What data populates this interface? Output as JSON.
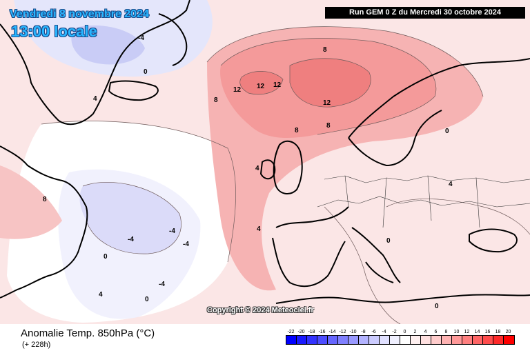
{
  "header": {
    "date_line": "Vendredi 8 novembre 2024",
    "time_line": "13:00 locale",
    "run_info": "Run GEM 0 Z du Mercredi 30 octobre 2024"
  },
  "map": {
    "copyright": "Copyright © 2024 Meteociel.fr",
    "contour_labels": [
      "8",
      "12",
      "12",
      "12",
      "12",
      "8",
      "8",
      "8",
      "4",
      "4",
      "4",
      "0",
      "0",
      "0",
      "-4",
      "-4",
      "-4",
      "-4",
      "-4",
      "8",
      "4",
      "0",
      "0",
      "4",
      "0"
    ]
  },
  "footer": {
    "field_title": "Anomalie Temp. 850hPa (°C)",
    "lead_time": "(+ 228h)"
  },
  "legend": {
    "labels": [
      "-22",
      "-20",
      "-18",
      "-16",
      "-14",
      "-12",
      "-10",
      "-8",
      "-6",
      "-4",
      "-2",
      "0",
      "2",
      "4",
      "6",
      "8",
      "10",
      "12",
      "14",
      "16",
      "18",
      "20"
    ],
    "colors": [
      "#0000ff",
      "#1a1aff",
      "#3333ff",
      "#4d4dff",
      "#6666ff",
      "#8080ff",
      "#9999ff",
      "#b3b3ff",
      "#ccccff",
      "#e0e0ff",
      "#f0f0ff",
      "#ffffff",
      "#fff0f0",
      "#ffe0e0",
      "#ffcccc",
      "#ffb3b3",
      "#ff9999",
      "#ff8080",
      "#ff6666",
      "#ff4d4d",
      "#ff2a2a",
      "#ff0000"
    ]
  }
}
